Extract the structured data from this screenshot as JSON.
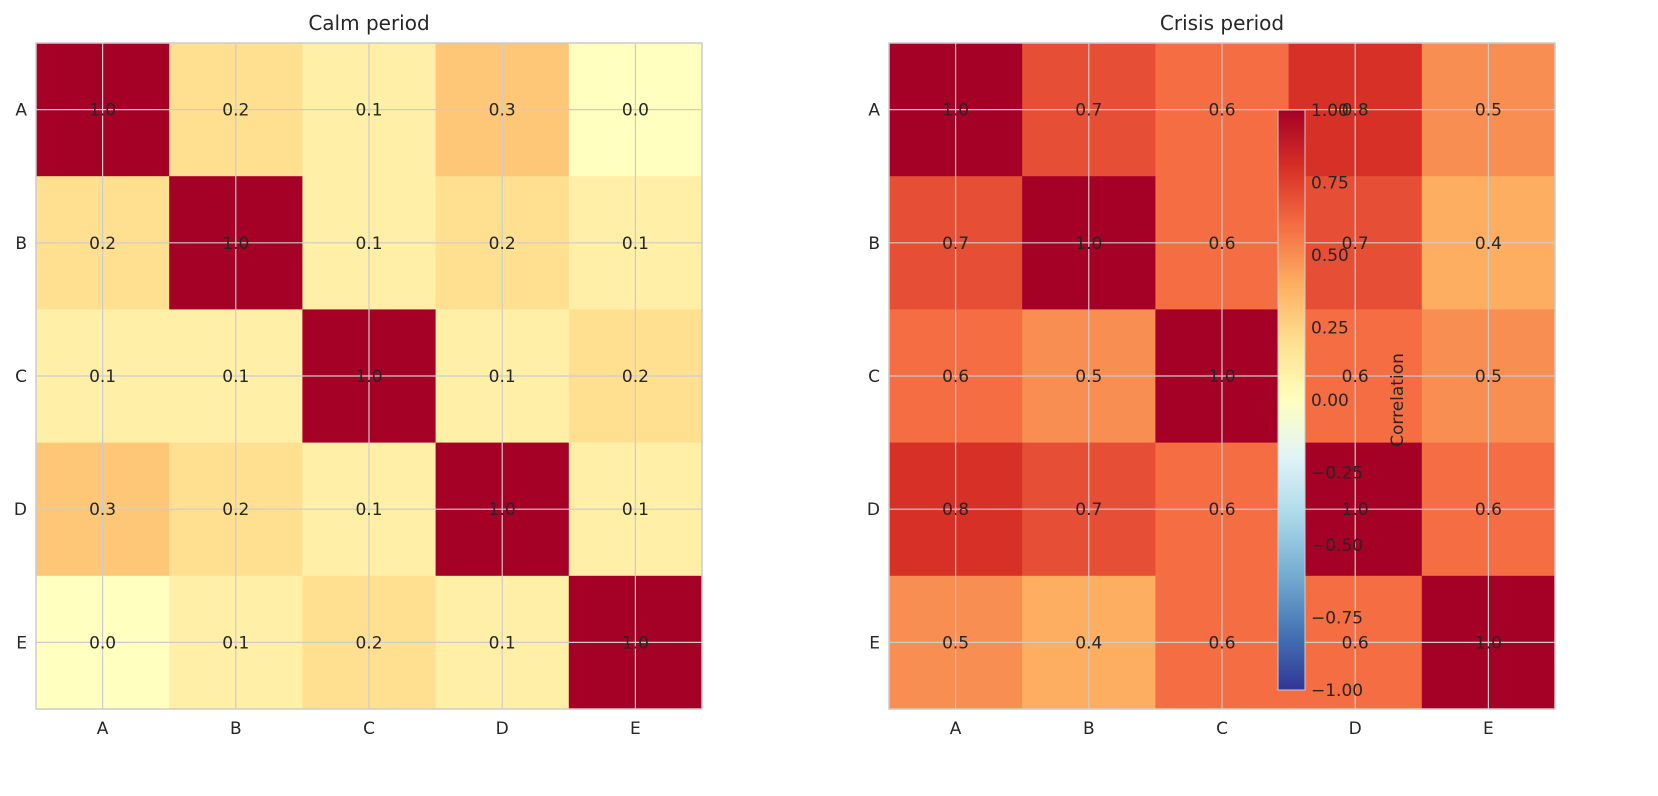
{
  "chart_data": {
    "type": "heatmap",
    "colormap": "RdYlBu_r",
    "vmin": -1.0,
    "vmax": 1.0,
    "panels": [
      {
        "title": "Calm period",
        "xlabels": [
          "A",
          "B",
          "C",
          "D",
          "E"
        ],
        "ylabels": [
          "A",
          "B",
          "C",
          "D",
          "E"
        ],
        "values": [
          [
            1.0,
            0.2,
            0.1,
            0.3,
            0.0
          ],
          [
            0.2,
            1.0,
            0.1,
            0.2,
            0.1
          ],
          [
            0.1,
            0.1,
            1.0,
            0.1,
            0.2
          ],
          [
            0.3,
            0.2,
            0.1,
            1.0,
            0.1
          ],
          [
            0.0,
            0.1,
            0.2,
            0.1,
            1.0
          ]
        ]
      },
      {
        "title": "Crisis period",
        "xlabels": [
          "A",
          "B",
          "C",
          "D",
          "E"
        ],
        "ylabels": [
          "A",
          "B",
          "C",
          "D",
          "E"
        ],
        "values": [
          [
            1.0,
            0.7,
            0.6,
            0.8,
            0.5
          ],
          [
            0.7,
            1.0,
            0.6,
            0.7,
            0.4
          ],
          [
            0.6,
            0.5,
            1.0,
            0.6,
            0.5
          ],
          [
            0.8,
            0.7,
            0.6,
            1.0,
            0.6
          ],
          [
            0.5,
            0.4,
            0.6,
            0.6,
            1.0
          ]
        ]
      }
    ],
    "colorbar": {
      "label": "Correlation",
      "ticks": [
        "1.00",
        "0.75",
        "0.50",
        "0.25",
        "0.00",
        "−0.25",
        "−0.50",
        "−0.75",
        "−1.00"
      ]
    },
    "grid": true
  }
}
